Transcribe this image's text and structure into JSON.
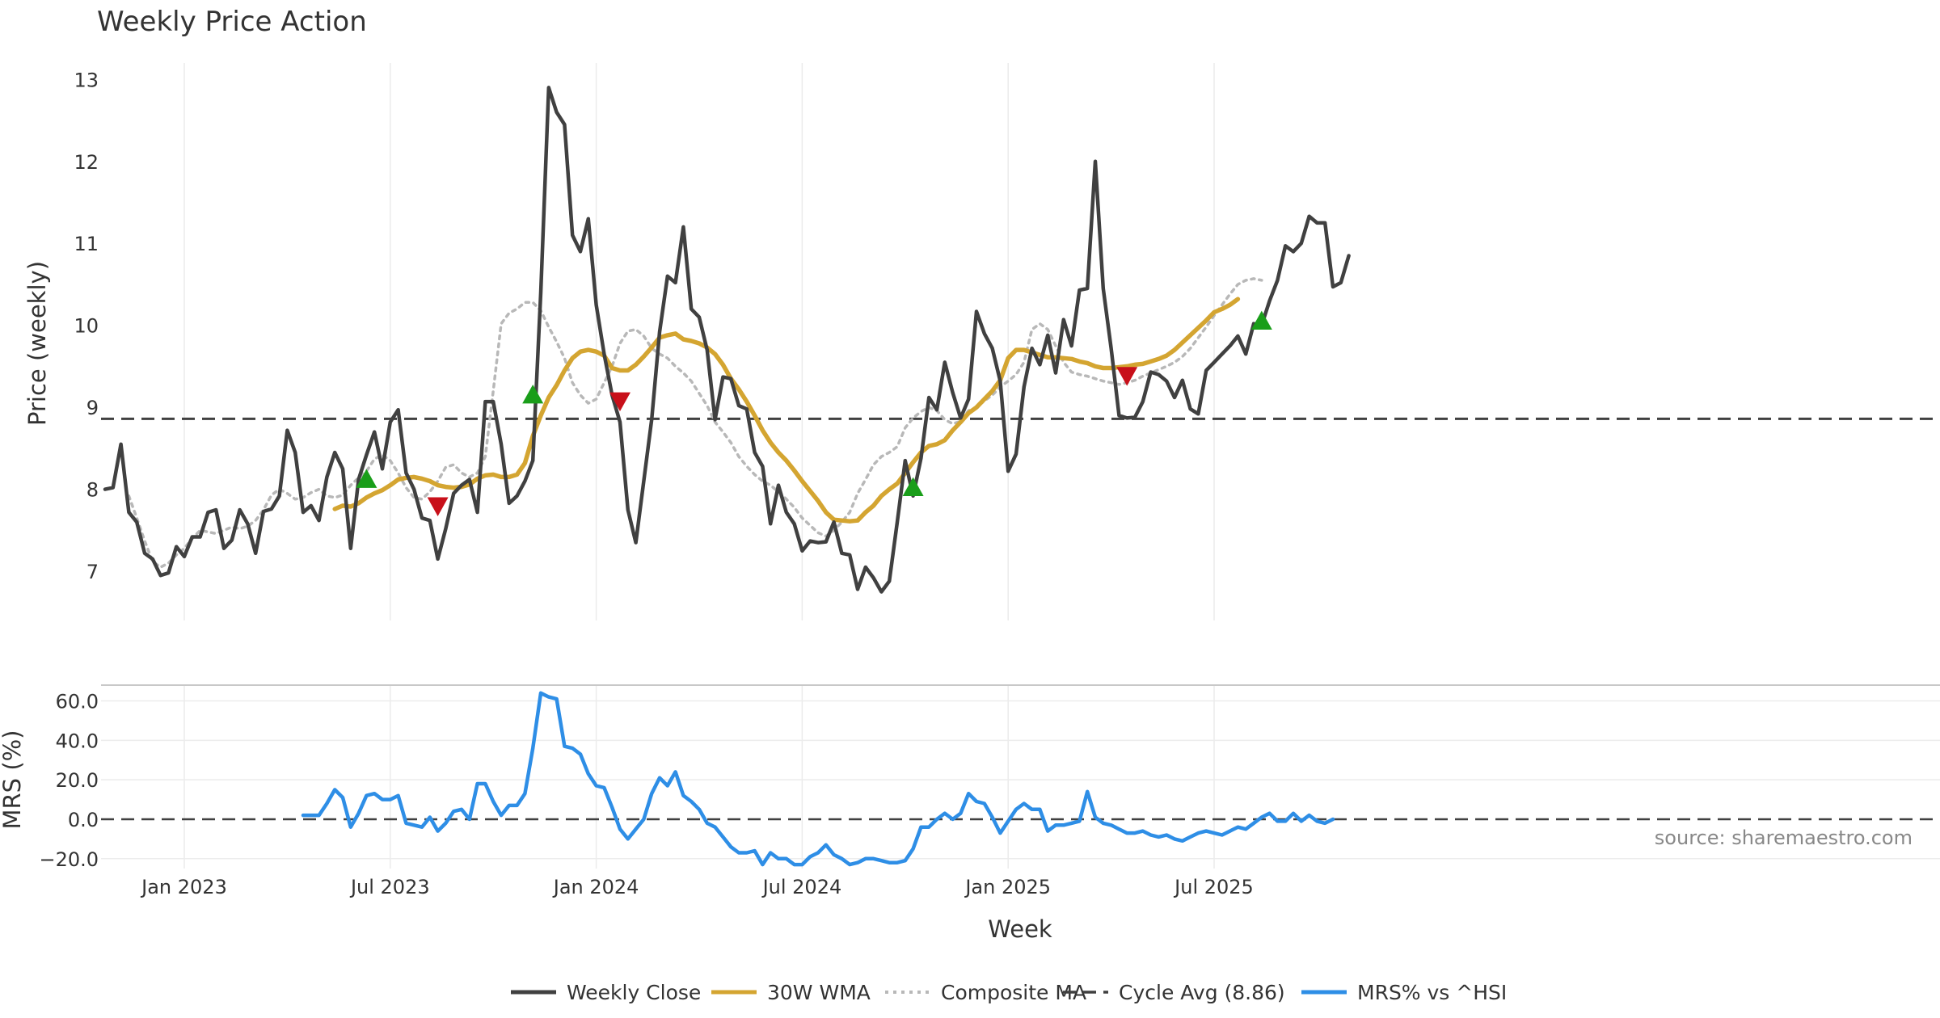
{
  "chart_data": {
    "type": "line",
    "title": "Weekly Price Action",
    "source": "source: sharemaestro.com",
    "xlabel": "Week",
    "x_ticks": [
      "Jan 2023",
      "Jul 2023",
      "Jan 2024",
      "Jul 2024",
      "Jan 2025",
      "Jul 2025"
    ],
    "x_tick_weeks": [
      10,
      36,
      62,
      88,
      114,
      140
    ],
    "price_panel": {
      "ylabel": "Price (weekly)",
      "ylim": [
        6.4,
        13.2
      ],
      "yticks": [
        "7",
        "8",
        "9",
        "10",
        "11",
        "12",
        "13"
      ],
      "ytick_values": [
        7,
        8,
        9,
        10,
        11,
        12,
        13
      ],
      "cycle_avg": 8.86,
      "series": [
        {
          "name": "Weekly Close",
          "color": "#404040",
          "start_week": 0,
          "values": [
            8.0,
            8.02,
            8.55,
            7.72,
            7.6,
            7.22,
            7.15,
            6.95,
            6.98,
            7.3,
            7.18,
            7.42,
            7.42,
            7.72,
            7.75,
            7.28,
            7.38,
            7.75,
            7.58,
            7.22,
            7.73,
            7.76,
            7.92,
            8.72,
            8.45,
            7.72,
            7.8,
            7.62,
            8.15,
            8.45,
            8.25,
            7.28,
            8.12,
            8.42,
            8.7,
            8.25,
            8.82,
            8.97,
            8.2,
            8.0,
            7.65,
            7.62,
            7.15,
            7.52,
            7.95,
            8.05,
            8.12,
            7.72,
            9.07,
            9.07,
            8.55,
            7.83,
            7.92,
            8.1,
            8.35,
            10.4,
            12.9,
            12.6,
            12.45,
            11.1,
            10.9,
            11.3,
            10.25,
            9.65,
            9.15,
            8.82,
            7.75,
            7.35,
            8.1,
            8.85,
            9.92,
            10.6,
            10.52,
            11.2,
            10.2,
            10.1,
            9.7,
            8.85,
            9.37,
            9.35,
            9.02,
            8.98,
            8.45,
            8.28,
            7.58,
            8.05,
            7.72,
            7.58,
            7.25,
            7.37,
            7.35,
            7.36,
            7.6,
            7.22,
            7.2,
            6.78,
            7.05,
            6.92,
            6.75,
            6.88,
            7.6,
            8.35,
            7.92,
            8.38,
            9.12,
            8.97,
            9.55,
            9.18,
            8.87,
            9.1,
            10.17,
            9.9,
            9.72,
            9.32,
            8.22,
            8.43,
            9.25,
            9.72,
            9.52,
            9.88,
            9.42,
            10.07,
            9.75,
            10.43,
            10.45,
            12.0,
            10.45,
            9.72,
            8.9,
            8.87,
            8.88,
            9.07,
            9.43,
            9.4,
            9.32,
            9.12,
            9.33,
            8.98,
            8.92,
            9.45,
            9.55,
            9.65,
            9.75,
            9.87,
            9.65,
            10.02,
            10.0,
            10.3,
            10.55,
            10.97,
            10.9,
            11.0,
            11.33,
            11.25,
            11.25,
            10.47,
            10.52,
            10.85
          ]
        },
        {
          "name": "30W WMA",
          "color": "#d4a531",
          "start_week": 29,
          "values": [
            7.76,
            7.8,
            7.79,
            7.83,
            7.9,
            7.95,
            7.99,
            8.05,
            8.12,
            8.14,
            8.15,
            8.13,
            8.1,
            8.05,
            8.03,
            8.02,
            8.03,
            8.06,
            8.13,
            8.17,
            8.18,
            8.15,
            8.15,
            8.18,
            8.32,
            8.65,
            8.9,
            9.12,
            9.27,
            9.45,
            9.6,
            9.68,
            9.7,
            9.68,
            9.63,
            9.48,
            9.45,
            9.45,
            9.52,
            9.62,
            9.73,
            9.85,
            9.88,
            9.9,
            9.83,
            9.81,
            9.78,
            9.73,
            9.65,
            9.52,
            9.35,
            9.22,
            9.07,
            8.9,
            8.72,
            8.57,
            8.45,
            8.35,
            8.23,
            8.1,
            7.98,
            7.86,
            7.72,
            7.63,
            7.62,
            7.61,
            7.62,
            7.72,
            7.8,
            7.92,
            8.0,
            8.07,
            8.2,
            8.33,
            8.45,
            8.53,
            8.55,
            8.6,
            8.72,
            8.82,
            8.93,
            9.0,
            9.1,
            9.2,
            9.33,
            9.6,
            9.7,
            9.7,
            9.67,
            9.64,
            9.61,
            9.61,
            9.6,
            9.59,
            9.56,
            9.54,
            9.5,
            9.48,
            9.48,
            9.49,
            9.5,
            9.52,
            9.53,
            9.56,
            9.59,
            9.63,
            9.7,
            9.79,
            9.88,
            9.97,
            10.06,
            10.16,
            10.2,
            10.25,
            10.32
          ]
        },
        {
          "name": "Composite MA",
          "color": "#b8b8b8",
          "start_week": 3,
          "values": [
            7.92,
            7.65,
            7.37,
            7.12,
            7.05,
            7.1,
            7.2,
            7.28,
            7.4,
            7.5,
            7.48,
            7.46,
            7.5,
            7.54,
            7.52,
            7.55,
            7.62,
            7.75,
            7.93,
            8.0,
            7.95,
            7.88,
            7.9,
            7.96,
            8.0,
            7.92,
            7.9,
            7.93,
            8.05,
            8.14,
            8.22,
            8.37,
            8.42,
            8.35,
            8.2,
            8.02,
            7.9,
            7.88,
            7.97,
            8.1,
            8.27,
            8.3,
            8.2,
            8.15,
            8.2,
            8.4,
            9.2,
            10.02,
            10.15,
            10.2,
            10.28,
            10.28,
            10.18,
            9.98,
            9.8,
            9.6,
            9.3,
            9.15,
            9.05,
            9.1,
            9.3,
            9.5,
            9.78,
            9.93,
            9.95,
            9.87,
            9.72,
            9.65,
            9.6,
            9.5,
            9.42,
            9.32,
            9.17,
            9.02,
            8.82,
            8.7,
            8.57,
            8.4,
            8.28,
            8.18,
            8.1,
            8.05,
            7.97,
            7.88,
            7.78,
            7.65,
            7.56,
            7.47,
            7.43,
            7.5,
            7.6,
            7.72,
            7.95,
            8.12,
            8.3,
            8.4,
            8.45,
            8.52,
            8.75,
            8.87,
            8.95,
            9.0,
            8.96,
            8.85,
            8.8,
            8.83,
            8.96,
            9.0,
            9.08,
            9.15,
            9.25,
            9.32,
            9.4,
            9.55,
            9.95,
            10.02,
            9.95,
            9.75,
            9.55,
            9.43,
            9.4,
            9.38,
            9.35,
            9.32,
            9.3,
            9.28,
            9.3,
            9.33,
            9.38,
            9.42,
            9.46,
            9.5,
            9.55,
            9.62,
            9.72,
            9.85,
            9.98,
            10.12,
            10.25,
            10.38,
            10.5,
            10.55,
            10.57,
            10.55
          ]
        }
      ],
      "buy_signals": [
        {
          "week": 33,
          "value": 8.12
        },
        {
          "week": 54,
          "value": 9.15
        },
        {
          "week": 102,
          "value": 8.02
        },
        {
          "week": 146,
          "value": 10.05
        }
      ],
      "sell_signals": [
        {
          "week": 42,
          "value": 7.8
        },
        {
          "week": 65,
          "value": 9.08
        },
        {
          "week": 129,
          "value": 9.39
        }
      ],
      "signal_colors": {
        "buy": "#1a9e1a",
        "sell": "#c8101a"
      }
    },
    "mrs_panel": {
      "ylabel": "MRS (%)",
      "ylim": [
        -25,
        68
      ],
      "yticks": [
        "60.0",
        "40.0",
        "20.0",
        "0.0",
        "−20.0"
      ],
      "ytick_values": [
        60,
        40,
        20,
        0,
        -20
      ],
      "series": [
        {
          "name": "MRS% vs ^HSI",
          "color": "#2e8ee6",
          "start_week": 25,
          "values": [
            2,
            2,
            2,
            8,
            15,
            11,
            -4,
            3,
            12,
            13,
            10,
            10,
            12,
            -2,
            -3,
            -4,
            1,
            -6,
            -2,
            4,
            5,
            0,
            18,
            18,
            9,
            2,
            7,
            7,
            13,
            36,
            64,
            62,
            61,
            37,
            36,
            33,
            23,
            17,
            16,
            6,
            -5,
            -10,
            -5,
            0,
            13,
            21,
            17,
            24,
            12,
            9,
            5,
            -2,
            -4,
            -9,
            -14,
            -17,
            -17,
            -16,
            -23,
            -17,
            -20,
            -20,
            -23,
            -23,
            -19,
            -17,
            -13,
            -18,
            -20,
            -23,
            -22,
            -20,
            -20,
            -21,
            -22,
            -22,
            -21,
            -15,
            -4,
            -4,
            0,
            3,
            0,
            3,
            13,
            9,
            8,
            1,
            -7,
            -1,
            5,
            8,
            5,
            5,
            -6,
            -3,
            -3,
            -2,
            -1,
            14,
            1,
            -2,
            -3,
            -5,
            -7,
            -7,
            -6,
            -8,
            -9,
            -8,
            -10,
            -11,
            -9,
            -7,
            -6,
            -7,
            -8,
            -6,
            -4,
            -5,
            -2,
            1,
            3,
            -1,
            -1,
            3,
            -1,
            2,
            -1,
            -2,
            0
          ]
        }
      ]
    },
    "legend": [
      {
        "label": "Weekly Close",
        "color": "#404040",
        "style": "solid"
      },
      {
        "label": "30W WMA",
        "color": "#d4a531",
        "style": "solid"
      },
      {
        "label": "Composite MA",
        "color": "#b8b8b8",
        "style": "dotted"
      },
      {
        "label": "Cycle Avg (8.86)",
        "color": "#404040",
        "style": "dashed"
      },
      {
        "label": "MRS% vs ^HSI",
        "color": "#2e8ee6",
        "style": "solid"
      }
    ],
    "legend_position": "bottom-center"
  }
}
